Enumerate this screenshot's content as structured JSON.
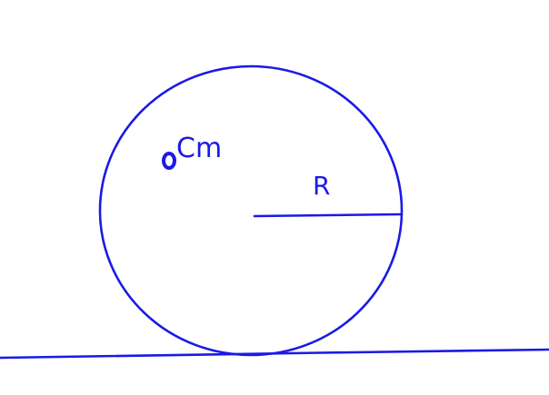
{
  "colors": {
    "ink": "#1a1ae6",
    "background": "#ffffff"
  },
  "labels": {
    "center_of_mass": "Cm",
    "radius": "R"
  }
}
